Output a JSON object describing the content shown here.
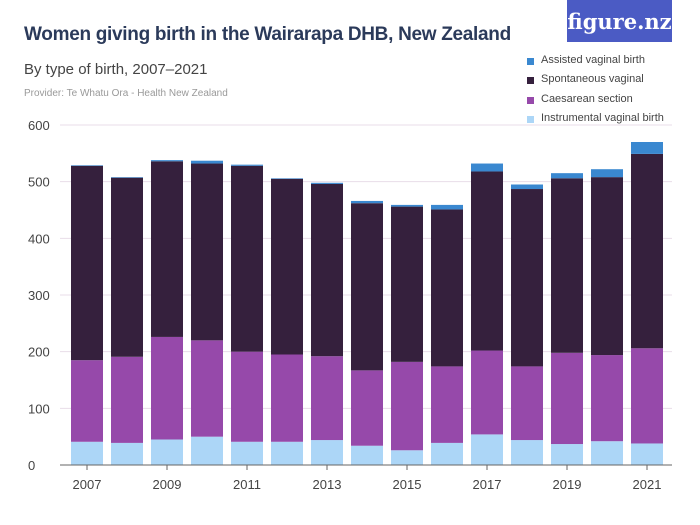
{
  "title": "Women giving birth in the Wairarapa DHB, New Zealand",
  "subtitle": "By type of birth, 2007–2021",
  "provider": "Provider: Te Whatu Ora - Health New Zealand",
  "logo": "figure.nz",
  "chart_data": {
    "type": "bar",
    "stacked": true,
    "categories": [
      "2007",
      "2008",
      "2009",
      "2010",
      "2011",
      "2012",
      "2013",
      "2014",
      "2015",
      "2016",
      "2017",
      "2018",
      "2019",
      "2020",
      "2021"
    ],
    "x_tick_labels": [
      "2007",
      "2009",
      "2011",
      "2013",
      "2015",
      "2017",
      "2019",
      "2021"
    ],
    "ylim": [
      0,
      600
    ],
    "y_ticks": [
      0,
      100,
      200,
      300,
      400,
      500,
      600
    ],
    "grid": true,
    "legend_position": "top-right",
    "series": [
      {
        "name": "Instrumental vaginal birth",
        "color": "#acd6f7",
        "values": [
          41,
          39,
          45,
          50,
          41,
          41,
          44,
          34,
          26,
          39,
          54,
          44,
          37,
          42,
          38
        ]
      },
      {
        "name": "Caesarean section",
        "color": "#9649aa",
        "values": [
          144,
          152,
          181,
          170,
          159,
          154,
          148,
          133,
          156,
          135,
          148,
          130,
          161,
          152,
          168
        ]
      },
      {
        "name": "Spontaneous vaginal",
        "color": "#35203d",
        "values": [
          343,
          316,
          310,
          312,
          328,
          310,
          304,
          295,
          274,
          277,
          316,
          313,
          308,
          314,
          343
        ]
      },
      {
        "name": "Assisted vaginal birth",
        "color": "#3a88d0",
        "values": [
          1,
          1,
          2,
          5,
          2,
          1,
          2,
          4,
          3,
          8,
          14,
          8,
          9,
          14,
          21
        ]
      }
    ],
    "legend_order": [
      "Assisted vaginal birth",
      "Spontaneous vaginal",
      "Caesarean section",
      "Instrumental vaginal birth"
    ]
  }
}
